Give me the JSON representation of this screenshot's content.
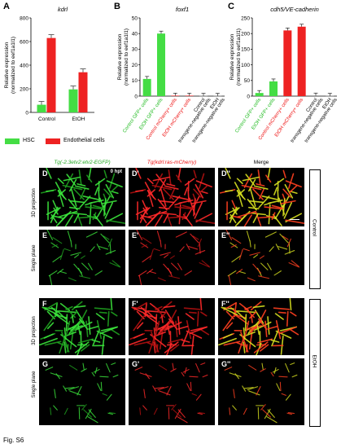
{
  "figure_label": "Fig. S6",
  "panels": {
    "A": {
      "letter": "A"
    },
    "B": {
      "letter": "B"
    },
    "C": {
      "letter": "C"
    }
  },
  "legend": {
    "items": [
      {
        "label": "HSC",
        "color": "#44dd44"
      },
      {
        "label": "Endothelial cells",
        "color": "#ee2222"
      }
    ]
  },
  "colors": {
    "green": "#44dd44",
    "red": "#ee2222",
    "darkgreen": "#22aa22",
    "text_green": "#22bb22",
    "text_red": "#ee1111"
  },
  "chart_data": [
    {
      "panel": "A",
      "type": "bar",
      "title": "kdrl",
      "ylabel": "Relative expression (normalized to eef1a1l1)",
      "categories": [
        "Control",
        "EtOH"
      ],
      "series": [
        {
          "name": "HSC",
          "values": [
            65,
            195
          ]
        },
        {
          "name": "Endothelial cells",
          "values": [
            630,
            340
          ]
        }
      ],
      "ylim": [
        0,
        800
      ],
      "yticks": [
        "0",
        "200",
        "400",
        "600",
        "800"
      ]
    },
    {
      "panel": "B",
      "type": "bar",
      "title": "foxf1",
      "ylabel": "Relative expression (normalized to eef1a1l1)",
      "categories": [
        "Control GFP+ cells",
        "EtOH GFP+ cells",
        "Control mCherry+ cells",
        "EtOH mCherry+ cells",
        "Control transgene-negative cells",
        "EtOH transgene-negative cells"
      ],
      "values": [
        11,
        40,
        0.3,
        0.3,
        0.2,
        0.2
      ],
      "ylim": [
        0,
        50
      ],
      "yticks": [
        "0",
        "10",
        "20",
        "30",
        "40",
        "50"
      ]
    },
    {
      "panel": "C",
      "type": "bar",
      "title": "cdh5/VE-cadherin",
      "ylabel": "Relative expression (normalized to eef1a1l1)",
      "categories": [
        "Control GFP+ cells",
        "EtOH GFP+ cells",
        "Control mCherry+ cells",
        "EtOH mCherry+ cells",
        "Control transgene-negative cells",
        "EtOH transgene-negative cells"
      ],
      "values": [
        10,
        47,
        210,
        222,
        2,
        1
      ],
      "ylim": [
        0,
        250
      ],
      "yticks": [
        "0",
        "50",
        "100",
        "150",
        "200",
        "250"
      ]
    }
  ],
  "micrographs": {
    "columns": [
      {
        "label": "Tg(-2.3etv2:etv2-EGFP)",
        "color": "#22aa22"
      },
      {
        "label": "Tg(kdrl:ras-mCherry)",
        "color": "#ee1111"
      },
      {
        "label": "Merge",
        "color": "#000000"
      }
    ],
    "rows": [
      {
        "label": "3D projection",
        "letters": [
          "D",
          "D'",
          "D''"
        ]
      },
      {
        "label": "Single plane",
        "letters": [
          "E",
          "E'",
          "E''"
        ]
      },
      {
        "label": "3D projection",
        "letters": [
          "F",
          "F'",
          "F''"
        ]
      },
      {
        "label": "Single plane",
        "letters": [
          "G",
          "G'",
          "G''"
        ]
      }
    ],
    "time_note": "0 hpt",
    "groups": [
      {
        "label": "Control"
      },
      {
        "label": "EtOH"
      }
    ]
  }
}
